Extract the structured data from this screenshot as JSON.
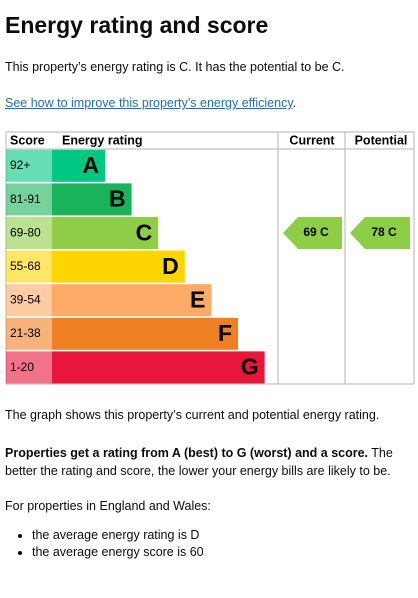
{
  "header": {
    "title": "Energy rating and score"
  },
  "intro": "This property’s energy rating is C. It has the potential to be C.",
  "link": "See how to improve this property’s energy efficiency",
  "table": {
    "columns": [
      "Score",
      "Energy rating",
      "Current",
      "Potential"
    ],
    "bands": [
      {
        "score": "92+",
        "letter": "A",
        "color": "#00c781"
      },
      {
        "score": "81-91",
        "letter": "B",
        "color": "#19b459"
      },
      {
        "score": "69-80",
        "letter": "C",
        "color": "#8dce46"
      },
      {
        "score": "55-68",
        "letter": "D",
        "color": "#ffd500"
      },
      {
        "score": "39-54",
        "letter": "E",
        "color": "#fcaa65"
      },
      {
        "score": "21-38",
        "letter": "F",
        "color": "#ef8023"
      },
      {
        "score": "1-20",
        "letter": "G",
        "color": "#e9153b"
      }
    ],
    "current": "69 C",
    "potential": "78 C"
  },
  "summary": "The graph shows this property’s current and potential energy rating.",
  "explain": {
    "bold": "Properties get a rating from A (best) to G (worst) and a score.",
    "rest": " The better the rating and score, the lower your energy bills are likely to be."
  },
  "averages": {
    "intro": "For properties in England and Wales:",
    "items": [
      "the average energy rating is D",
      "the average energy score is 60"
    ]
  }
}
